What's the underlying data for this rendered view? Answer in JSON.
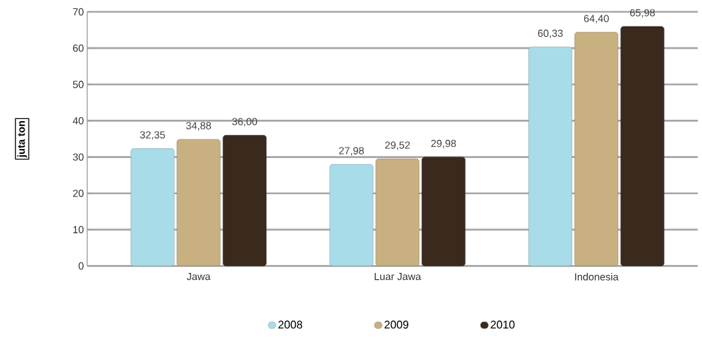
{
  "chart_data": {
    "type": "bar",
    "ylabel": "juta ton",
    "categories": [
      "Jawa",
      "Luar Jawa",
      "Indonesia"
    ],
    "series": [
      {
        "name": "2008",
        "color": "#a8dce8",
        "values": [
          32.35,
          27.98,
          60.33
        ],
        "value_labels": [
          "32,35",
          "27,98",
          "60,33"
        ]
      },
      {
        "name": "2009",
        "color": "#c8b080",
        "values": [
          34.88,
          29.52,
          64.4
        ],
        "value_labels": [
          "34,88",
          "29,52",
          "64,40"
        ]
      },
      {
        "name": "2010",
        "color": "#3a2a1e",
        "values": [
          36.0,
          29.98,
          65.98
        ],
        "value_labels": [
          "36,00",
          "29,98",
          "65,98"
        ]
      }
    ],
    "ylim": [
      0,
      70
    ],
    "yticks": [
      0,
      10,
      20,
      30,
      40,
      50,
      60,
      70
    ],
    "grid": "y",
    "legend": "bottom"
  }
}
